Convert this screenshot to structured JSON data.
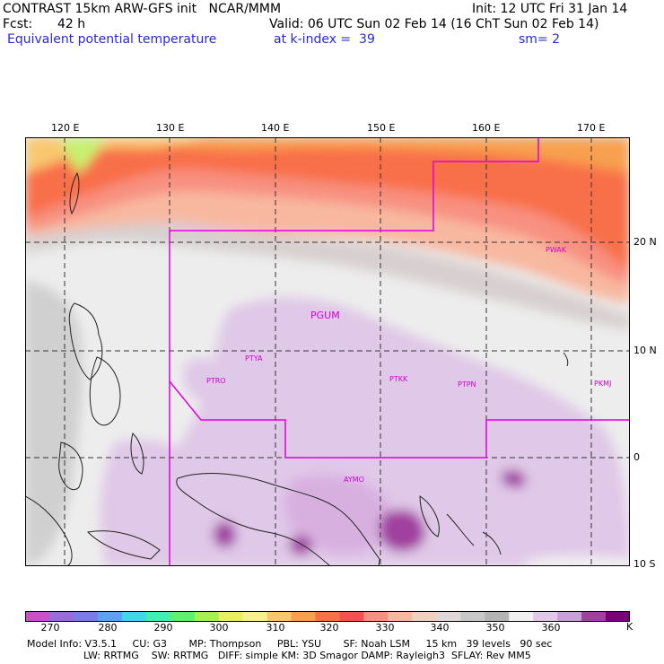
{
  "header": {
    "title_left": "CONTRAST 15km ARW-GFS init   NCAR/MMM",
    "init": "Init: 12 UTC Fri 31 Jan 14",
    "fcst_label": "Fcst:",
    "fcst_value": "42 h",
    "valid": "Valid: 06 UTC Sun 02 Feb 14 (16 ChT Sun 02 Feb 14)",
    "field": "Equivalent potential temperature",
    "level": "at k-index =  39",
    "smoothing": "sm= 2"
  },
  "map": {
    "lon_labels": [
      "120 E",
      "130 E",
      "140 E",
      "150 E",
      "160 E",
      "170 E"
    ],
    "lat_labels": [
      "20 N",
      "10 N",
      "0",
      "10 S"
    ],
    "stations": [
      "PWAK",
      "PGUM",
      "PTYA",
      "PTRO",
      "PTKK",
      "PTPN",
      "PKMJ",
      "AYMO"
    ],
    "boundary_color": "#e000e0"
  },
  "colorbar": {
    "labels": [
      "270",
      "280",
      "290",
      "300",
      "310",
      "320",
      "330",
      "340",
      "350",
      "360"
    ],
    "unit": "K",
    "colors": [
      "#c850c8",
      "#9a6cd8",
      "#7c7ce8",
      "#60a0f0",
      "#40d8e8",
      "#40f0b0",
      "#60f070",
      "#a8f050",
      "#e8f060",
      "#f8f090",
      "#f8c870",
      "#f8a050",
      "#f87048",
      "#f85050",
      "#f89080",
      "#f8b8a0",
      "#f0d0c0",
      "#e0d8d8",
      "#c8c8c8",
      "#b4b4b4",
      "#f0f0f0",
      "#e0c8e8",
      "#c8a0d8",
      "#a040a0",
      "#7a007a"
    ]
  },
  "model_info": {
    "line1": "Model Info: V3.5.1     CU: G3       MP: Thompson     PBL: YSU       SF: Noah LSM     15 km   39 levels   90 sec",
    "line2": "                  LW: RRTMG    SW: RRTMG   DIFF: simple KM: 3D Smagor DAMP: Rayleigh3  SFLAY: Rev MM5"
  }
}
